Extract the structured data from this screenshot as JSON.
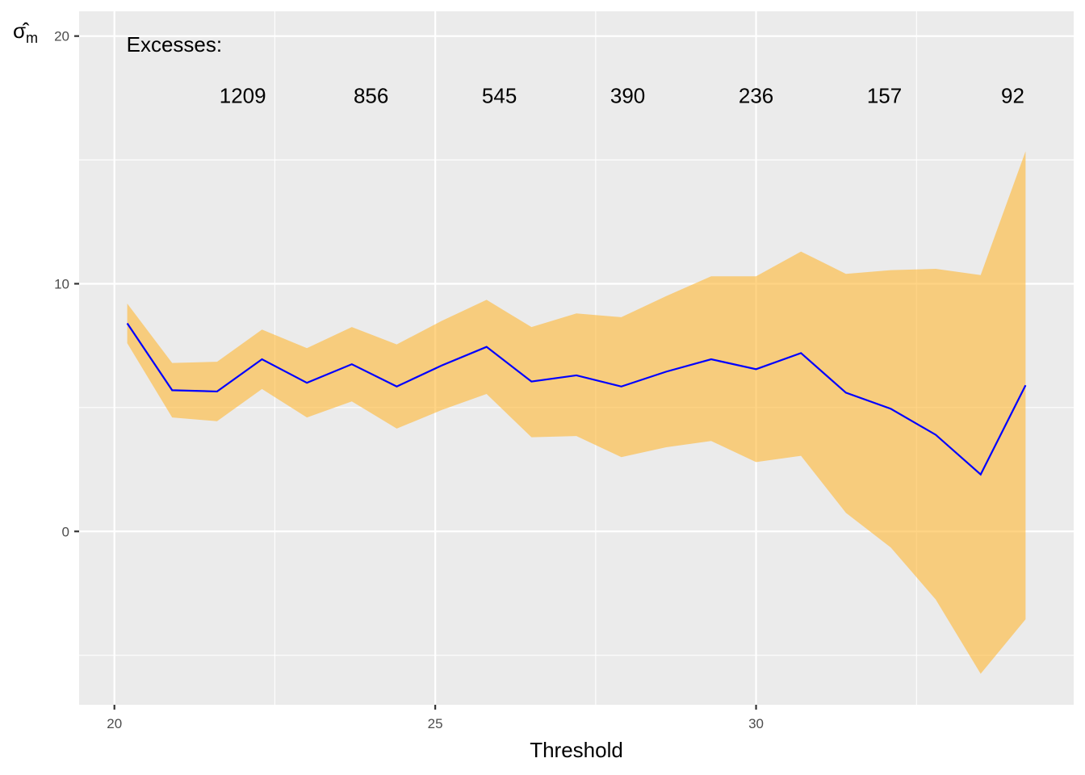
{
  "chart_data": {
    "type": "line",
    "xlabel": "Threshold",
    "ylabel": "σ̂",
    "ylabel_sub": "m",
    "xlim": [
      19.45,
      34.95
    ],
    "ylim": [
      -7.0,
      21.0
    ],
    "x_ticks": [
      20,
      25,
      30
    ],
    "x_tick_labels": [
      "20",
      "25",
      "30"
    ],
    "y_ticks": [
      0,
      10,
      20
    ],
    "y_tick_labels": [
      "0",
      "10",
      "20"
    ],
    "grid": true,
    "line_color": "#0000ff",
    "band_color": "#ffb733",
    "background_color": "#ebebeb",
    "x": [
      20.2,
      20.9,
      21.6,
      22.3,
      23.0,
      23.7,
      24.4,
      25.1,
      25.8,
      26.5,
      27.2,
      27.9,
      28.6,
      29.3,
      30.0,
      30.7,
      31.4,
      32.1,
      32.8,
      33.5,
      34.2
    ],
    "series": [
      {
        "name": "estimate",
        "values": [
          8.4,
          5.7,
          5.65,
          6.95,
          6.0,
          6.75,
          5.85,
          6.7,
          7.45,
          6.05,
          6.3,
          5.85,
          6.45,
          6.95,
          6.55,
          7.2,
          5.6,
          4.95,
          3.9,
          2.3,
          5.9
        ]
      },
      {
        "name": "upper",
        "values": [
          9.2,
          6.8,
          6.85,
          8.15,
          7.4,
          8.25,
          7.55,
          8.5,
          9.35,
          8.25,
          8.8,
          8.65,
          9.5,
          10.3,
          10.3,
          11.3,
          10.4,
          10.55,
          10.6,
          10.35,
          15.35
        ]
      },
      {
        "name": "lower",
        "values": [
          7.6,
          4.6,
          4.45,
          5.75,
          4.6,
          5.25,
          4.15,
          4.9,
          5.55,
          3.8,
          3.85,
          3.0,
          3.4,
          3.65,
          2.8,
          3.05,
          0.75,
          -0.65,
          -2.75,
          -5.75,
          -3.55
        ]
      }
    ],
    "annotations": {
      "header": "Excesses:",
      "labels": [
        {
          "x": 22.0,
          "text": "1209"
        },
        {
          "x": 24.0,
          "text": "856"
        },
        {
          "x": 26.0,
          "text": "545"
        },
        {
          "x": 28.0,
          "text": "390"
        },
        {
          "x": 30.0,
          "text": "236"
        },
        {
          "x": 32.0,
          "text": "157"
        },
        {
          "x": 34.0,
          "text": "92"
        }
      ],
      "label_y": 17.6
    }
  }
}
